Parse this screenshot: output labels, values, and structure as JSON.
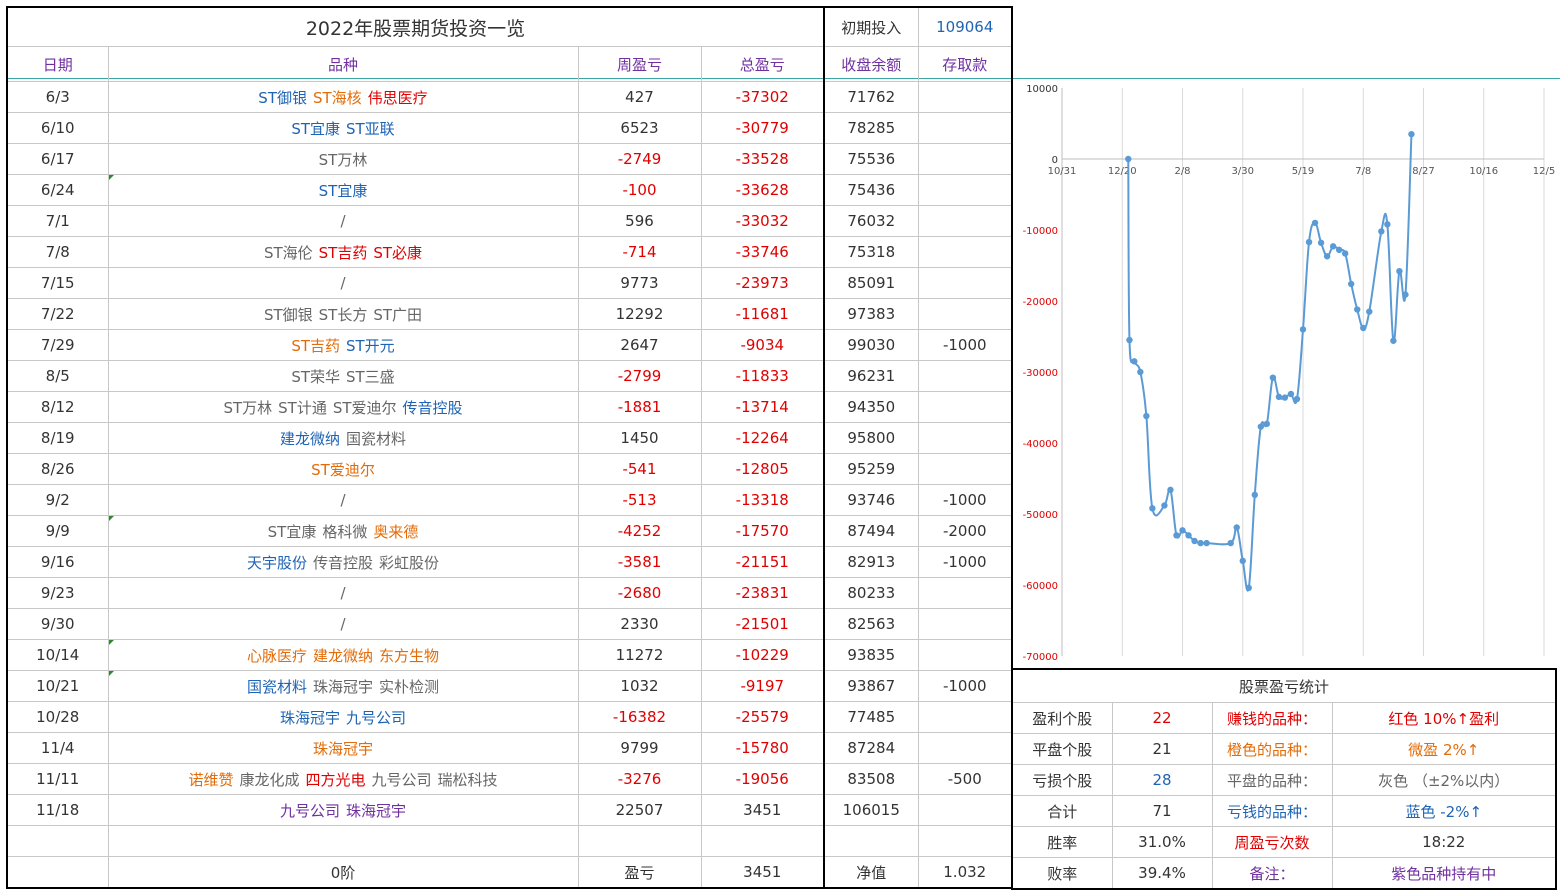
{
  "title": "2022年股票期货投资一览",
  "initial_label": "初期投入",
  "initial_value": "109064",
  "headers": {
    "date": "日期",
    "variety": "品种",
    "weekly": "周盈亏",
    "total": "总盈亏",
    "balance": "收盘余额",
    "deposit": "存取款"
  },
  "rows": [
    {
      "date": "6/3",
      "stocks": [
        {
          "t": "ST御银",
          "c": "blue"
        },
        {
          "t": "ST海核",
          "c": "orange"
        },
        {
          "t": "伟思医疗",
          "c": "red"
        }
      ],
      "weekly": "427",
      "weekly_neg": false,
      "total": "-37302",
      "balance": "71762",
      "deposit": ""
    },
    {
      "date": "6/10",
      "stocks": [
        {
          "t": "ST宜康",
          "c": "blue"
        },
        {
          "t": "ST亚联",
          "c": "blue"
        }
      ],
      "weekly": "6523",
      "weekly_neg": false,
      "total": "-30779",
      "balance": "78285",
      "deposit": ""
    },
    {
      "date": "6/17",
      "stocks": [
        {
          "t": "ST万林",
          "c": "gray"
        }
      ],
      "weekly": "-2749",
      "weekly_neg": true,
      "total": "-33528",
      "balance": "75536",
      "deposit": ""
    },
    {
      "date": "6/24",
      "stocks": [
        {
          "t": "ST宜康",
          "c": "blue"
        }
      ],
      "weekly": "-100",
      "weekly_neg": true,
      "total": "-33628",
      "balance": "75436",
      "deposit": ""
    },
    {
      "date": "7/1",
      "stocks": [
        {
          "t": "/",
          "c": "gray"
        }
      ],
      "weekly": "596",
      "weekly_neg": false,
      "total": "-33032",
      "balance": "76032",
      "deposit": ""
    },
    {
      "date": "7/8",
      "stocks": [
        {
          "t": "ST海伦",
          "c": "gray"
        },
        {
          "t": "ST吉药",
          "c": "red"
        },
        {
          "t": "ST必康",
          "c": "red"
        }
      ],
      "weekly": "-714",
      "weekly_neg": true,
      "total": "-33746",
      "balance": "75318",
      "deposit": ""
    },
    {
      "date": "7/15",
      "stocks": [
        {
          "t": "/",
          "c": "gray"
        }
      ],
      "weekly": "9773",
      "weekly_neg": false,
      "total": "-23973",
      "balance": "85091",
      "deposit": ""
    },
    {
      "date": "7/22",
      "stocks": [
        {
          "t": "ST御银",
          "c": "gray"
        },
        {
          "t": "ST长方",
          "c": "gray"
        },
        {
          "t": "ST广田",
          "c": "gray"
        }
      ],
      "weekly": "12292",
      "weekly_neg": false,
      "total": "-11681",
      "balance": "97383",
      "deposit": ""
    },
    {
      "date": "7/29",
      "stocks": [
        {
          "t": "ST吉药",
          "c": "orange"
        },
        {
          "t": "ST开元",
          "c": "blue"
        }
      ],
      "weekly": "2647",
      "weekly_neg": false,
      "total": "-9034",
      "balance": "99030",
      "deposit": "-1000"
    },
    {
      "date": "8/5",
      "stocks": [
        {
          "t": "ST荣华",
          "c": "gray"
        },
        {
          "t": "ST三盛",
          "c": "gray"
        }
      ],
      "weekly": "-2799",
      "weekly_neg": true,
      "total": "-11833",
      "balance": "96231",
      "deposit": ""
    },
    {
      "date": "8/12",
      "stocks": [
        {
          "t": "ST万林",
          "c": "gray"
        },
        {
          "t": "ST计通",
          "c": "gray"
        },
        {
          "t": "ST爱迪尔",
          "c": "gray"
        },
        {
          "t": "传音控股",
          "c": "blue"
        }
      ],
      "weekly": "-1881",
      "weekly_neg": true,
      "total": "-13714",
      "balance": "94350",
      "deposit": ""
    },
    {
      "date": "8/19",
      "stocks": [
        {
          "t": "建龙微纳",
          "c": "blue"
        },
        {
          "t": "国瓷材料",
          "c": "gray"
        }
      ],
      "weekly": "1450",
      "weekly_neg": false,
      "total": "-12264",
      "balance": "95800",
      "deposit": ""
    },
    {
      "date": "8/26",
      "stocks": [
        {
          "t": "ST爱迪尔",
          "c": "orange"
        }
      ],
      "weekly": "-541",
      "weekly_neg": true,
      "total": "-12805",
      "balance": "95259",
      "deposit": ""
    },
    {
      "date": "9/2",
      "stocks": [
        {
          "t": "/",
          "c": "gray"
        }
      ],
      "weekly": "-513",
      "weekly_neg": true,
      "total": "-13318",
      "balance": "93746",
      "deposit": "-1000"
    },
    {
      "date": "9/9",
      "stocks": [
        {
          "t": "ST宜康",
          "c": "gray"
        },
        {
          "t": "格科微",
          "c": "gray"
        },
        {
          "t": "奥来德",
          "c": "orange"
        }
      ],
      "weekly": "-4252",
      "weekly_neg": true,
      "total": "-17570",
      "balance": "87494",
      "deposit": "-2000"
    },
    {
      "date": "9/16",
      "stocks": [
        {
          "t": "天宇股份",
          "c": "blue"
        },
        {
          "t": "传音控股",
          "c": "gray"
        },
        {
          "t": "彩虹股份",
          "c": "gray"
        }
      ],
      "weekly": "-3581",
      "weekly_neg": true,
      "total": "-21151",
      "balance": "82913",
      "deposit": "-1000"
    },
    {
      "date": "9/23",
      "stocks": [
        {
          "t": "/",
          "c": "gray"
        }
      ],
      "weekly": "-2680",
      "weekly_neg": true,
      "total": "-23831",
      "balance": "80233",
      "deposit": ""
    },
    {
      "date": "9/30",
      "stocks": [
        {
          "t": "/",
          "c": "gray"
        }
      ],
      "weekly": "2330",
      "weekly_neg": false,
      "total": "-21501",
      "balance": "82563",
      "deposit": ""
    },
    {
      "date": "10/14",
      "stocks": [
        {
          "t": "心脉医疗",
          "c": "orange"
        },
        {
          "t": "建龙微纳",
          "c": "orange"
        },
        {
          "t": "东方生物",
          "c": "orange"
        }
      ],
      "weekly": "11272",
      "weekly_neg": false,
      "total": "-10229",
      "balance": "93835",
      "deposit": ""
    },
    {
      "date": "10/21",
      "stocks": [
        {
          "t": "国瓷材料",
          "c": "blue"
        },
        {
          "t": "珠海冠宇",
          "c": "gray"
        },
        {
          "t": "实朴检测",
          "c": "gray"
        }
      ],
      "weekly": "1032",
      "weekly_neg": false,
      "total": "-9197",
      "balance": "93867",
      "deposit": "-1000"
    },
    {
      "date": "10/28",
      "stocks": [
        {
          "t": "珠海冠宇",
          "c": "blue"
        },
        {
          "t": "九号公司",
          "c": "blue"
        }
      ],
      "weekly": "-16382",
      "weekly_neg": true,
      "total": "-25579",
      "balance": "77485",
      "deposit": ""
    },
    {
      "date": "11/4",
      "stocks": [
        {
          "t": "珠海冠宇",
          "c": "orange"
        }
      ],
      "weekly": "9799",
      "weekly_neg": false,
      "total": "-15780",
      "balance": "87284",
      "deposit": ""
    },
    {
      "date": "11/11",
      "stocks": [
        {
          "t": "诺维赞",
          "c": "orange"
        },
        {
          "t": "康龙化成",
          "c": "gray"
        },
        {
          "t": "四方光电",
          "c": "red"
        },
        {
          "t": "九号公司",
          "c": "gray"
        },
        {
          "t": "瑞松科技",
          "c": "gray"
        }
      ],
      "weekly": "-3276",
      "weekly_neg": true,
      "total": "-19056",
      "balance": "83508",
      "deposit": "-500"
    },
    {
      "date": "11/18",
      "stocks": [
        {
          "t": "九号公司",
          "c": "purple"
        },
        {
          "t": "珠海冠宇",
          "c": "purple"
        }
      ],
      "weekly": "22507",
      "weekly_neg": false,
      "total": "3451",
      "balance": "106015",
      "deposit": ""
    }
  ],
  "footer": {
    "stage": "0阶",
    "pnl_label": "盈亏",
    "pnl_value": "3451",
    "nav_label": "净值",
    "nav_value": "1.032"
  },
  "stats": {
    "title": "股票盈亏统计",
    "profit_label": "盈利个股",
    "profit_count": "22",
    "earn_label": "赚钱的品种：",
    "earn_desc": "红色 10%↑盈利",
    "flat_label": "平盘个股",
    "flat_count": "21",
    "orange_label": "橙色的品种：",
    "orange_desc": "微盈 2%↑",
    "loss_label": "亏损个股",
    "loss_count": "28",
    "gray_label": "平盘的品种：",
    "gray_desc": "灰色 （±2%以内）",
    "sum_label": "合计",
    "sum_count": "71",
    "lose_label": "亏钱的品种：",
    "lose_desc": "蓝色 -2%↑",
    "win_label": "胜率",
    "win_value": "31.0%",
    "weekly_count_label": "周盈亏次数",
    "weekly_count_value": "18:22",
    "fail_label": "败率",
    "fail_value": "39.4%",
    "note_label": "备注：",
    "note_desc": "紫色品种持有中"
  },
  "colors": {
    "red": "#e00000",
    "orange": "#e36c09",
    "blue": "#1f64b4",
    "gray": "#666666",
    "purple": "#7030a0",
    "line": "#5b9bd5"
  },
  "chart_data": {
    "type": "line",
    "x_tick_labels": [
      "10/31",
      "12/20",
      "2/8",
      "3/30",
      "5/19",
      "7/8",
      "8/27",
      "10/16",
      "12/5"
    ],
    "y_tick_labels": [
      "10000",
      "0",
      "-10000",
      "-20000",
      "-30000",
      "-40000",
      "-50000",
      "-60000",
      "-70000"
    ],
    "ylim": [
      -70000,
      10000
    ],
    "x_range_days": [
      0,
      400
    ],
    "series": [
      {
        "points": [
          [
            55,
            0
          ],
          [
            56,
            -25500
          ],
          [
            60,
            -28500
          ],
          [
            65,
            -30000
          ],
          [
            70,
            -36200
          ],
          [
            75,
            -49200
          ],
          [
            85,
            -48800
          ],
          [
            90,
            -46600
          ],
          [
            95,
            -53000
          ],
          [
            100,
            -52300
          ],
          [
            105,
            -53000
          ],
          [
            110,
            -53800
          ],
          [
            115,
            -54100
          ],
          [
            120,
            -54100
          ],
          [
            140,
            -54100
          ],
          [
            145,
            -51900
          ],
          [
            150,
            -56600
          ],
          [
            155,
            -60400
          ],
          [
            160,
            -47300
          ],
          [
            165,
            -37700
          ],
          [
            170,
            -37300
          ],
          [
            175,
            -30800
          ],
          [
            180,
            -33500
          ],
          [
            185,
            -33600
          ],
          [
            190,
            -33100
          ],
          [
            195,
            -33800
          ],
          [
            200,
            -24000
          ],
          [
            205,
            -11700
          ],
          [
            210,
            -9000
          ],
          [
            215,
            -11800
          ],
          [
            220,
            -13700
          ],
          [
            225,
            -12300
          ],
          [
            230,
            -12800
          ],
          [
            235,
            -13300
          ],
          [
            240,
            -17600
          ],
          [
            245,
            -21200
          ],
          [
            250,
            -23800
          ],
          [
            255,
            -21500
          ],
          [
            265,
            -10200
          ],
          [
            270,
            -9200
          ],
          [
            275,
            -25600
          ],
          [
            280,
            -15800
          ],
          [
            285,
            -19100
          ],
          [
            290,
            3500
          ]
        ]
      }
    ]
  }
}
